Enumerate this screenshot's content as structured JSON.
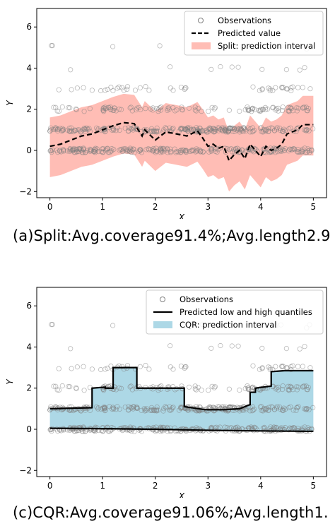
{
  "chart_data": [
    {
      "type": "scatter",
      "title": "",
      "xlabel": "X",
      "ylabel": "Y",
      "xlim": [
        -0.25,
        5.25
      ],
      "ylim": [
        -2.3,
        6.9
      ],
      "xticks": [
        "0",
        "1",
        "2",
        "3",
        "4",
        "5"
      ],
      "yticks": [
        "−2",
        "0",
        "2",
        "4",
        "6"
      ],
      "grid": false,
      "legend_position": "top-right",
      "caption": "(a)Split:Avg.coverage91.4%;Avg.length2.9",
      "series": [
        {
          "name": "Observations",
          "kind": "scatter",
          "color": "#808080"
        },
        {
          "name": "Predicted value",
          "kind": "line",
          "style": "dashed",
          "color": "#000000",
          "x": [
            0,
            0.2,
            0.4,
            0.6,
            0.8,
            1.0,
            1.2,
            1.4,
            1.6,
            1.75,
            1.8,
            2.0,
            2.2,
            2.4,
            2.6,
            2.8,
            2.9,
            3.0,
            3.1,
            3.2,
            3.3,
            3.4,
            3.5,
            3.6,
            3.7,
            3.8,
            3.9,
            4.0,
            4.1,
            4.2,
            4.3,
            4.4,
            4.5,
            4.6,
            4.7,
            4.8,
            5.0
          ],
          "y": [
            0.2,
            0.3,
            0.5,
            0.7,
            0.8,
            1.0,
            1.2,
            1.35,
            1.3,
            0.7,
            1.0,
            0.5,
            0.9,
            0.8,
            0.7,
            0.95,
            0.6,
            0.2,
            0.3,
            0.1,
            0.2,
            -0.5,
            -0.2,
            0.0,
            -0.4,
            0.3,
            0.0,
            -0.3,
            0.2,
            0.0,
            0.1,
            0.3,
            0.8,
            0.9,
            1.0,
            1.25,
            1.25
          ]
        },
        {
          "name": "Split: prediction interval",
          "kind": "band",
          "color": "#ffbdb5",
          "x": [
            0,
            0.2,
            0.4,
            0.6,
            0.8,
            1.0,
            1.2,
            1.4,
            1.6,
            1.75,
            1.8,
            2.0,
            2.2,
            2.4,
            2.6,
            2.8,
            2.9,
            3.0,
            3.1,
            3.2,
            3.3,
            3.4,
            3.5,
            3.6,
            3.7,
            3.8,
            3.9,
            4.0,
            4.1,
            4.2,
            4.3,
            4.4,
            4.5,
            4.6,
            4.7,
            4.8,
            5.0
          ],
          "lower": [
            -1.3,
            -1.2,
            -1.0,
            -0.8,
            -0.7,
            -0.5,
            -0.3,
            -0.15,
            -0.2,
            -0.8,
            -0.5,
            -1.0,
            -0.6,
            -0.7,
            -0.8,
            -0.55,
            -0.9,
            -1.3,
            -1.2,
            -1.4,
            -1.3,
            -2.0,
            -1.7,
            -1.5,
            -1.9,
            -1.2,
            -1.5,
            -1.8,
            -1.3,
            -1.5,
            -1.4,
            -1.2,
            -0.7,
            -0.6,
            -0.5,
            -0.25,
            -0.25
          ],
          "upper": [
            1.6,
            1.7,
            1.9,
            2.1,
            2.2,
            2.4,
            2.6,
            2.75,
            2.7,
            2.1,
            2.4,
            1.9,
            2.3,
            2.2,
            2.1,
            2.35,
            2.0,
            1.6,
            1.7,
            1.5,
            1.6,
            0.9,
            1.2,
            1.4,
            1.0,
            1.7,
            1.4,
            1.1,
            1.6,
            1.4,
            1.5,
            1.7,
            2.2,
            2.3,
            2.4,
            2.65,
            2.65
          ]
        }
      ]
    },
    {
      "type": "scatter",
      "title": "",
      "xlabel": "X",
      "ylabel": "Y",
      "xlim": [
        -0.25,
        5.25
      ],
      "ylim": [
        -2.3,
        6.9
      ],
      "xticks": [
        "0",
        "1",
        "2",
        "3",
        "4",
        "5"
      ],
      "yticks": [
        "−2",
        "0",
        "2",
        "4",
        "6"
      ],
      "grid": false,
      "legend_position": "top-right",
      "caption": "(c)CQR:Avg.coverage91.06%;Avg.length1.",
      "series": [
        {
          "name": "Observations",
          "kind": "scatter",
          "color": "#808080"
        },
        {
          "name": "Predicted low and high quantiles",
          "kind": "line",
          "style": "solid",
          "color": "#000000",
          "x_high": [
            0,
            0.8,
            0.8,
            1.05,
            1.05,
            1.2,
            1.2,
            1.65,
            1.65,
            2.55,
            2.55,
            2.95,
            3.3,
            3.6,
            3.8,
            3.8,
            3.9,
            3.9,
            4.2,
            4.2,
            4.45,
            5.0
          ],
          "high": [
            1.0,
            1.05,
            2.0,
            2.05,
            2.0,
            2.0,
            3.0,
            3.0,
            2.0,
            2.0,
            1.1,
            0.95,
            0.95,
            1.0,
            1.2,
            1.8,
            1.8,
            2.0,
            2.1,
            2.8,
            2.85,
            2.85
          ],
          "x_low": [
            0,
            1.0,
            2.0,
            3.0,
            4.0,
            5.0
          ],
          "low": [
            0.05,
            0.03,
            0.0,
            -0.05,
            -0.08,
            -0.1
          ]
        },
        {
          "name": "CQR: prediction interval",
          "kind": "band",
          "color": "#add8e6"
        }
      ]
    }
  ],
  "colors": {
    "observation": "#808080",
    "split_band": "#ffbdb5",
    "cqr_band": "#add8e6",
    "line": "#000000",
    "axis": "#000000"
  }
}
